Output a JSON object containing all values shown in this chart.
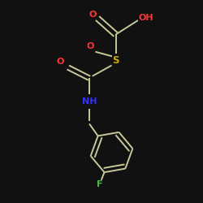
{
  "background_color": "#111111",
  "bond_color": "#c8c89a",
  "atom_colors": {
    "O": "#ff3333",
    "S": "#ccaa00",
    "N": "#3333ff",
    "F": "#44bb44",
    "C": "#c8c89a"
  },
  "figsize": [
    2.5,
    2.5
  ],
  "dpi": 100,
  "xlim": [
    0,
    10
  ],
  "ylim": [
    0,
    10
  ]
}
